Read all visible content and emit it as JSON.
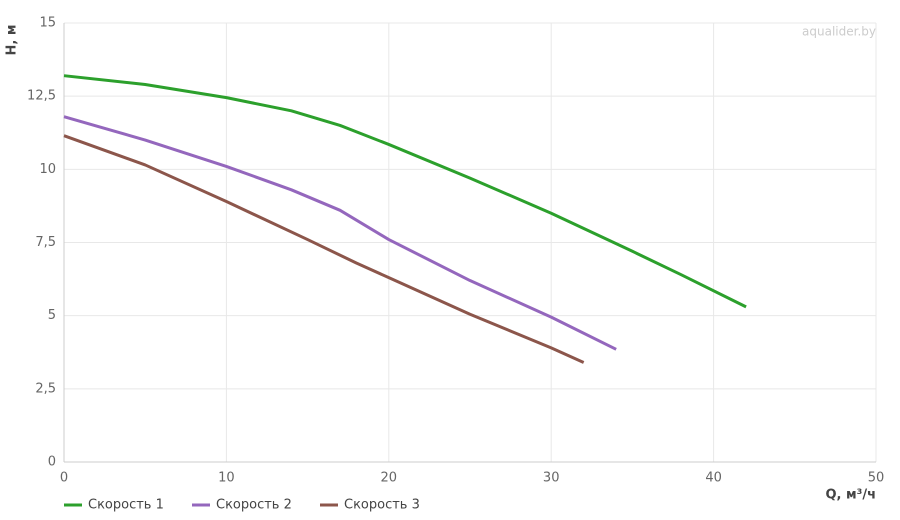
{
  "chart_data": {
    "type": "line",
    "watermark": "aqualider.by",
    "xlabel": "Q, м³/ч",
    "ylabel": "H, м",
    "xlim": [
      0,
      50
    ],
    "xticks": [
      0,
      10,
      20,
      30,
      40,
      50
    ],
    "ylim": [
      0,
      15
    ],
    "yticks": [
      0,
      {
        "value": 2.5,
        "label": "2,5"
      },
      5,
      {
        "value": 7.5,
        "label": "7,5"
      },
      10,
      {
        "value": 12.5,
        "label": "12,5"
      },
      15
    ],
    "grid": true,
    "legend": "bottom-left",
    "series": [
      {
        "name": "Скорость 1",
        "color": "#2ca02c",
        "x": [
          0,
          5,
          10,
          14,
          17,
          20,
          25,
          30,
          35,
          38,
          42
        ],
        "values": [
          13.2,
          12.9,
          12.45,
          12.0,
          11.5,
          10.85,
          9.7,
          8.5,
          7.2,
          6.4,
          5.3
        ]
      },
      {
        "name": "Скорость 2",
        "color": "#9467bd",
        "x": [
          0,
          5,
          10,
          14,
          17,
          20,
          25,
          30,
          34
        ],
        "values": [
          11.8,
          11.0,
          10.1,
          9.3,
          8.6,
          7.6,
          6.2,
          4.95,
          3.85
        ]
      },
      {
        "name": "Скорость 3",
        "color": "#8c564b",
        "x": [
          0,
          5,
          10,
          15,
          18,
          20,
          25,
          30,
          32
        ],
        "values": [
          11.15,
          10.15,
          8.9,
          7.6,
          6.8,
          6.3,
          5.05,
          3.9,
          3.4
        ]
      }
    ]
  }
}
